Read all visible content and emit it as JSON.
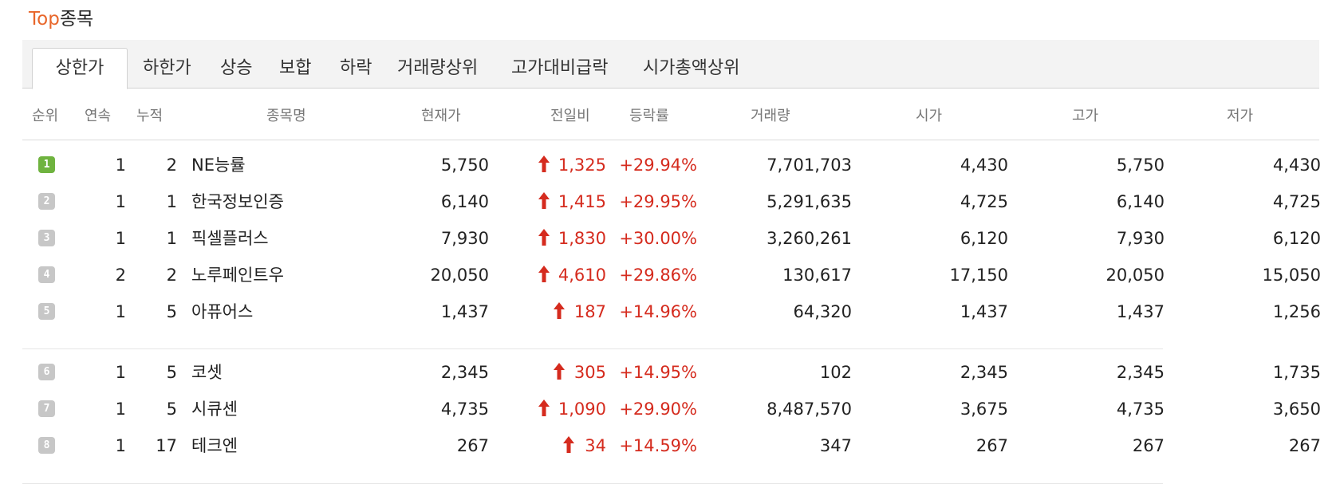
{
  "header": {
    "title_prefix": "Top",
    "title_suffix": "종목"
  },
  "tabs": [
    {
      "label": "상한가",
      "active": true
    },
    {
      "label": "하한가",
      "active": false
    },
    {
      "label": "상승",
      "active": false
    },
    {
      "label": "보합",
      "active": false
    },
    {
      "label": "하락",
      "active": false
    },
    {
      "label": "거래량상위",
      "active": false
    },
    {
      "label": "고가대비급락",
      "active": false
    },
    {
      "label": "시가총액상위",
      "active": false
    }
  ],
  "columns": [
    "순위",
    "연속",
    "누적",
    "종목명",
    "현재가",
    "전일비",
    "등락률",
    "거래량",
    "시가",
    "고가",
    "저가"
  ],
  "colors": {
    "up": "#d52b1e",
    "accent": "#e8662a",
    "rank_first": "#6fb33f",
    "rank_other": "#c7c7c7"
  },
  "rows": [
    {
      "rank": "1",
      "streak": "1",
      "cumulative": "2",
      "name": "NE능률",
      "price": "5,750",
      "change": "1,325",
      "rate": "+29.94%",
      "volume": "7,701,703",
      "open": "4,430",
      "high": "5,750",
      "low": "4,430"
    },
    {
      "rank": "2",
      "streak": "1",
      "cumulative": "1",
      "name": "한국정보인증",
      "price": "6,140",
      "change": "1,415",
      "rate": "+29.95%",
      "volume": "5,291,635",
      "open": "4,725",
      "high": "6,140",
      "low": "4,725"
    },
    {
      "rank": "3",
      "streak": "1",
      "cumulative": "1",
      "name": "픽셀플러스",
      "price": "7,930",
      "change": "1,830",
      "rate": "+30.00%",
      "volume": "3,260,261",
      "open": "6,120",
      "high": "7,930",
      "low": "6,120"
    },
    {
      "rank": "4",
      "streak": "2",
      "cumulative": "2",
      "name": "노루페인트우",
      "price": "20,050",
      "change": "4,610",
      "rate": "+29.86%",
      "volume": "130,617",
      "open": "17,150",
      "high": "20,050",
      "low": "15,050"
    },
    {
      "rank": "5",
      "streak": "1",
      "cumulative": "5",
      "name": "아퓨어스",
      "price": "1,437",
      "change": "187",
      "rate": "+14.96%",
      "volume": "64,320",
      "open": "1,437",
      "high": "1,437",
      "low": "1,256"
    },
    {
      "rank": "6",
      "streak": "1",
      "cumulative": "5",
      "name": "코셋",
      "price": "2,345",
      "change": "305",
      "rate": "+14.95%",
      "volume": "102",
      "open": "2,345",
      "high": "2,345",
      "low": "1,735"
    },
    {
      "rank": "7",
      "streak": "1",
      "cumulative": "5",
      "name": "시큐센",
      "price": "4,735",
      "change": "1,090",
      "rate": "+29.90%",
      "volume": "8,487,570",
      "open": "3,675",
      "high": "4,735",
      "low": "3,650"
    },
    {
      "rank": "8",
      "streak": "1",
      "cumulative": "17",
      "name": "테크엔",
      "price": "267",
      "change": "34",
      "rate": "+14.59%",
      "volume": "347",
      "open": "267",
      "high": "267",
      "low": "267"
    }
  ]
}
